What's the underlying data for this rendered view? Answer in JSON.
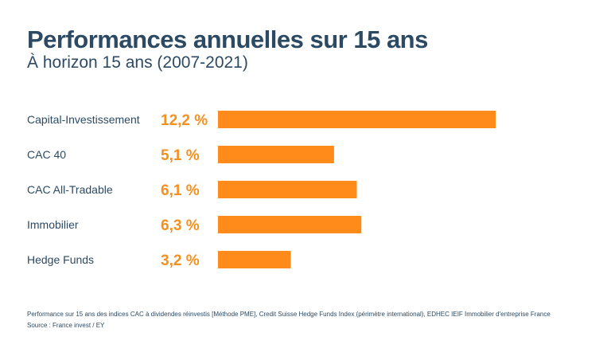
{
  "title": "Performances annuelles sur 15 ans",
  "subtitle": "À horizon 15 ans (2007-2021)",
  "colors": {
    "bar": "#ff8c1a",
    "value_label": "#f5901e",
    "text": "#2c4a63"
  },
  "chart_data": {
    "type": "bar",
    "orientation": "horizontal",
    "categories": [
      "Capital-Investissement",
      "CAC 40",
      "CAC All-Tradable",
      "Immobilier",
      "Hedge Funds"
    ],
    "values": [
      12.2,
      5.1,
      6.1,
      6.3,
      3.2
    ],
    "value_labels": [
      "12,2 %",
      "5,1 %",
      "6,1 %",
      "6,3 %",
      "3,2 %"
    ],
    "unit": "%",
    "xlim": [
      0,
      12.2
    ]
  },
  "footnotes": {
    "methodology": "Performance sur 15 ans des indices CAC à dividendes réinvestis [Méthode PME], Credit Suisse Hedge Funds Index (périmètre international), EDHEC IEIF Immobilier d'entreprise France",
    "source": "Source : France invest / EY"
  }
}
